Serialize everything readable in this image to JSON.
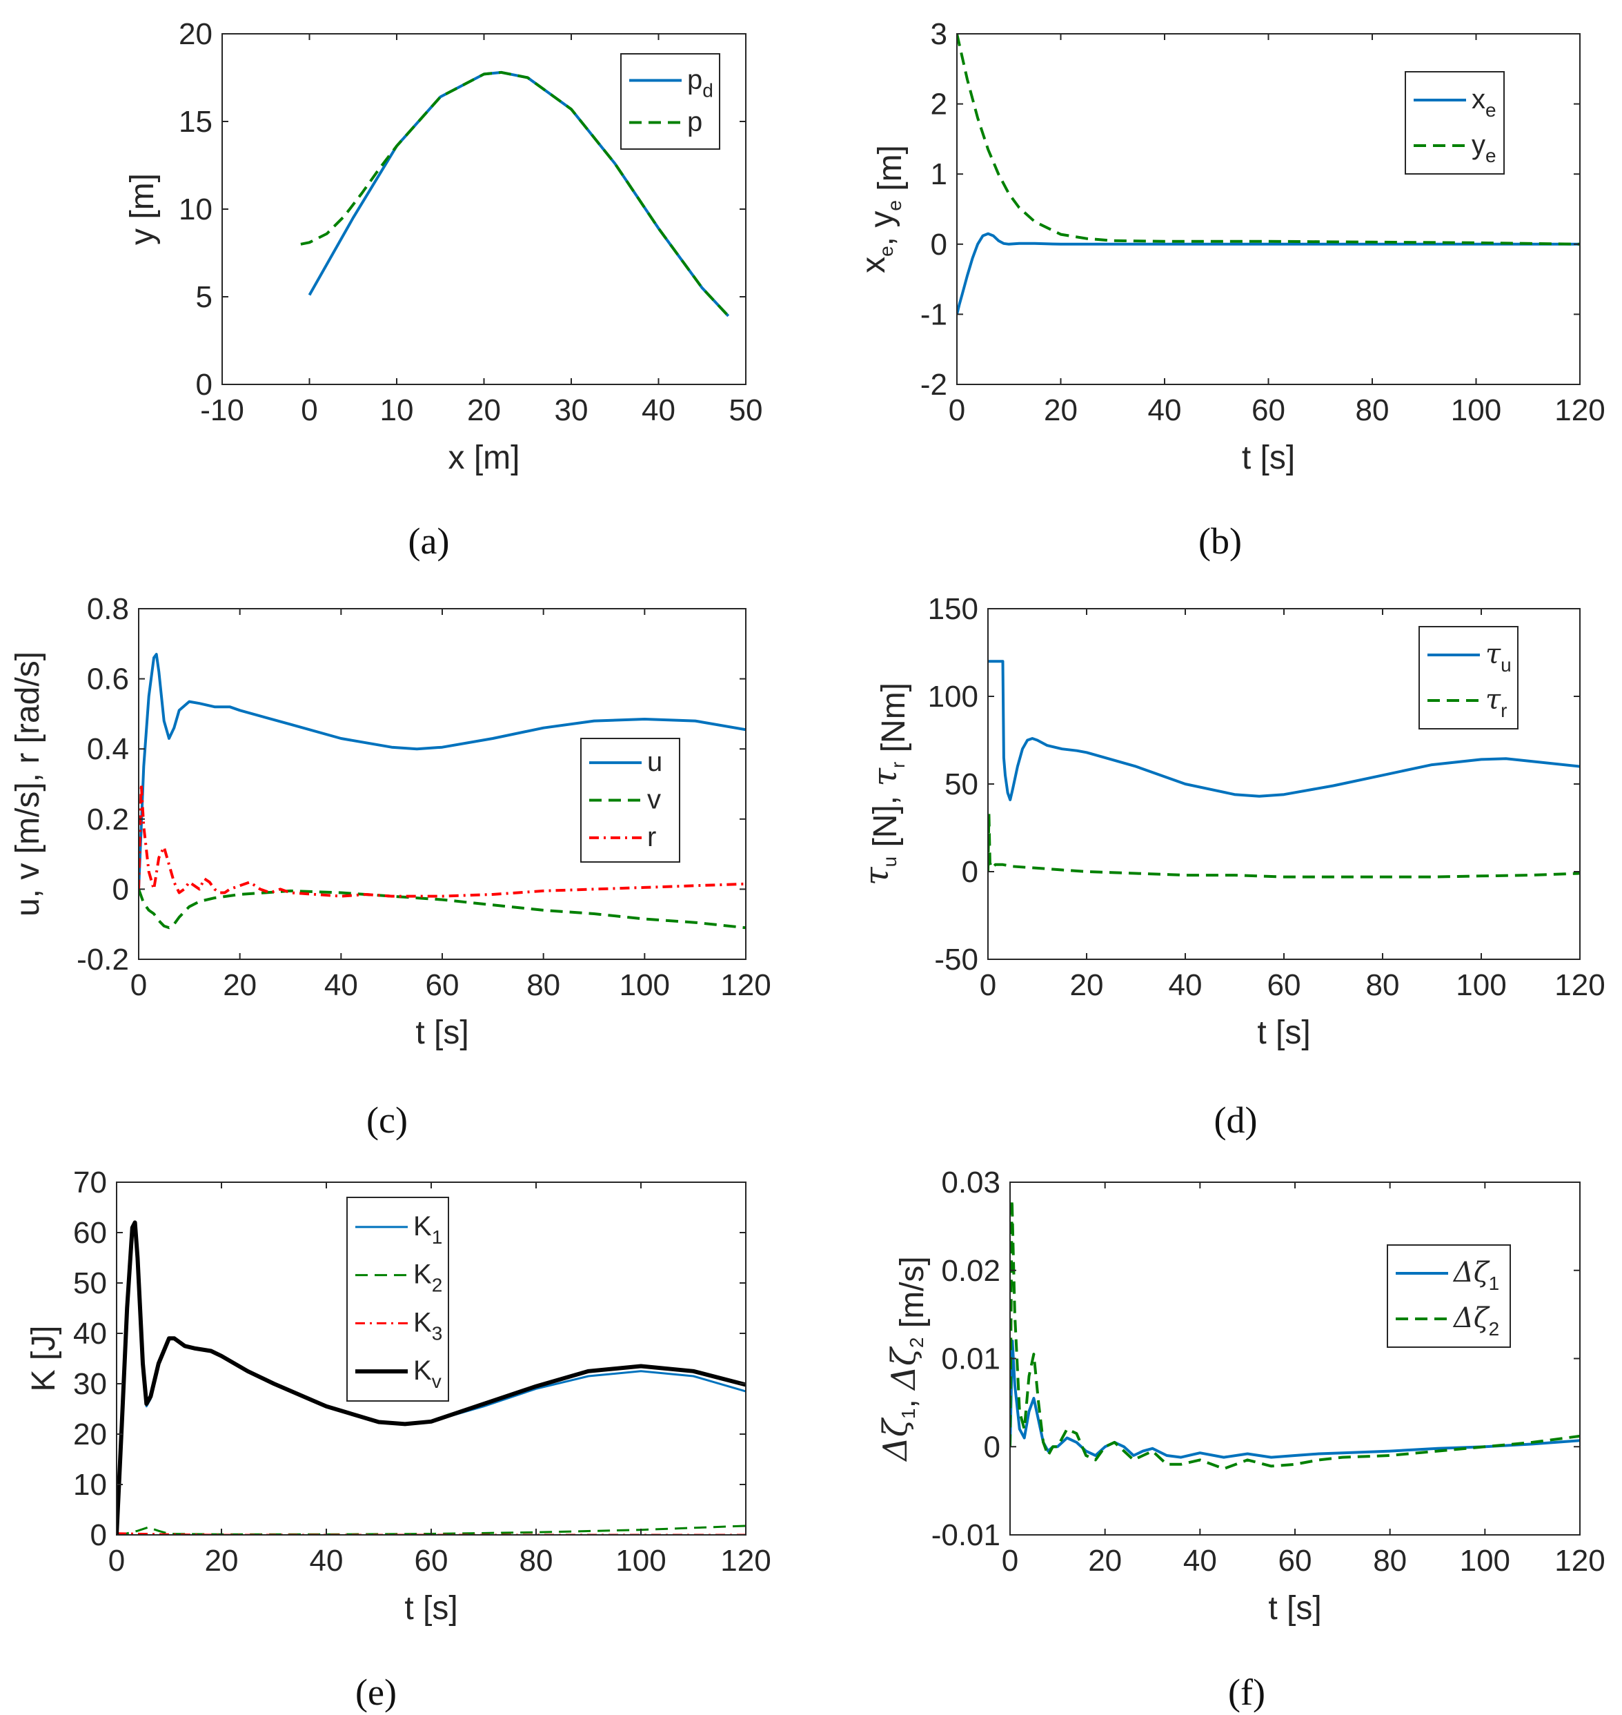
{
  "colors": {
    "blue": "#0072BD",
    "green": "#008000",
    "red": "#FF0000",
    "black": "#000000"
  },
  "chart_data": [
    {
      "type": "line",
      "caption": "(a)",
      "xlabel": "x [m]",
      "ylabel": "y [m]",
      "xlim": [
        -10,
        50
      ],
      "ylim": [
        0,
        20
      ],
      "xticks": [
        -10,
        0,
        10,
        20,
        30,
        40,
        50
      ],
      "xtick_labels": [
        "-10",
        "0",
        "10",
        "20",
        "30",
        "40",
        "50"
      ],
      "yticks": [
        0,
        5,
        10,
        15,
        20
      ],
      "ytick_labels": [
        "0",
        "5",
        "10",
        "15",
        "20"
      ],
      "legend_pos": "top-right",
      "series": [
        {
          "name": "p_d",
          "label": "p",
          "sub": "d",
          "color": "blue",
          "style": "solid",
          "x": [
            0,
            5,
            10,
            15,
            20,
            22,
            25,
            30,
            35,
            40,
            45,
            48
          ],
          "y": [
            5.1,
            9.5,
            13.6,
            16.4,
            17.7,
            17.8,
            17.5,
            15.7,
            12.6,
            8.9,
            5.5,
            3.9
          ]
        },
        {
          "name": "p",
          "label": "p",
          "sub": "",
          "color": "green",
          "style": "dashed",
          "x": [
            -1,
            0,
            2,
            4,
            6,
            8,
            10,
            15,
            20,
            22,
            25,
            30,
            35,
            40,
            45,
            48
          ],
          "y": [
            8.0,
            8.1,
            8.6,
            9.6,
            10.9,
            12.3,
            13.6,
            16.4,
            17.7,
            17.8,
            17.5,
            15.7,
            12.6,
            8.9,
            5.5,
            3.9
          ]
        }
      ]
    },
    {
      "type": "line",
      "caption": "(b)",
      "xlabel": "t [s]",
      "ylabel": "x_e, y_e [m]",
      "xlim": [
        0,
        120
      ],
      "ylim": [
        -2,
        3
      ],
      "xticks": [
        0,
        20,
        40,
        60,
        80,
        100,
        120
      ],
      "xtick_labels": [
        "0",
        "20",
        "40",
        "60",
        "80",
        "100",
        "120"
      ],
      "yticks": [
        -2,
        -1,
        0,
        1,
        2,
        3
      ],
      "ytick_labels": [
        "-2",
        "-1",
        "0",
        "1",
        "2",
        "3"
      ],
      "legend_pos": "top-right",
      "series": [
        {
          "name": "x_e",
          "label": "x",
          "sub": "e",
          "color": "blue",
          "style": "solid",
          "x": [
            0,
            0.5,
            1,
            2,
            3,
            4,
            5,
            6,
            7,
            8,
            9,
            10,
            12,
            15,
            20,
            40,
            60,
            80,
            100,
            120
          ],
          "y": [
            -1.0,
            -0.85,
            -0.72,
            -0.45,
            -0.2,
            0.0,
            0.12,
            0.15,
            0.12,
            0.05,
            0.01,
            0.0,
            0.01,
            0.01,
            0.0,
            0.0,
            0.0,
            0.0,
            0.0,
            0.0
          ]
        },
        {
          "name": "y_e",
          "label": "y",
          "sub": "e",
          "color": "green",
          "style": "dashed",
          "x": [
            0,
            2,
            4,
            6,
            8,
            10,
            12,
            15,
            20,
            25,
            30,
            40,
            60,
            80,
            100,
            120
          ],
          "y": [
            3.0,
            2.35,
            1.8,
            1.35,
            1.0,
            0.72,
            0.52,
            0.32,
            0.14,
            0.08,
            0.05,
            0.04,
            0.04,
            0.03,
            0.02,
            0.0
          ]
        }
      ]
    },
    {
      "type": "line",
      "caption": "(c)",
      "xlabel": "t [s]",
      "ylabel": "u, v [m/s], r [rad/s]",
      "xlim": [
        0,
        120
      ],
      "ylim": [
        -0.2,
        0.8
      ],
      "xticks": [
        0,
        20,
        40,
        60,
        80,
        100,
        120
      ],
      "xtick_labels": [
        "0",
        "20",
        "40",
        "60",
        "80",
        "100",
        "120"
      ],
      "yticks": [
        -0.2,
        0,
        0.2,
        0.4,
        0.6,
        0.8
      ],
      "ytick_labels": [
        "-0.2",
        "0",
        "0.2",
        "0.4",
        "0.6",
        "0.8"
      ],
      "legend_pos": "center-right",
      "series": [
        {
          "name": "u",
          "label": "u",
          "sub": "",
          "color": "blue",
          "style": "solid",
          "x": [
            0,
            1,
            2,
            3,
            3.5,
            4,
            5,
            6,
            7,
            8,
            10,
            12,
            15,
            18,
            20,
            30,
            40,
            50,
            55,
            60,
            70,
            80,
            90,
            100,
            110,
            120
          ],
          "y": [
            0.0,
            0.35,
            0.55,
            0.66,
            0.67,
            0.62,
            0.48,
            0.43,
            0.46,
            0.51,
            0.535,
            0.53,
            0.52,
            0.52,
            0.51,
            0.47,
            0.43,
            0.405,
            0.4,
            0.405,
            0.43,
            0.46,
            0.48,
            0.485,
            0.48,
            0.455
          ]
        },
        {
          "name": "v",
          "label": "v",
          "sub": "",
          "color": "green",
          "style": "dashed",
          "x": [
            0,
            1,
            2,
            3,
            4,
            5,
            6,
            7,
            8,
            10,
            12,
            15,
            20,
            30,
            40,
            50,
            60,
            70,
            80,
            90,
            100,
            110,
            120
          ],
          "y": [
            0.0,
            -0.04,
            -0.06,
            -0.07,
            -0.09,
            -0.105,
            -0.11,
            -0.1,
            -0.08,
            -0.05,
            -0.035,
            -0.025,
            -0.015,
            -0.005,
            -0.01,
            -0.02,
            -0.03,
            -0.045,
            -0.06,
            -0.07,
            -0.085,
            -0.095,
            -0.11
          ]
        },
        {
          "name": "r",
          "label": "r",
          "sub": "",
          "color": "red",
          "style": "dashdot",
          "x": [
            0,
            0.5,
            1,
            2,
            3,
            4,
            5,
            6,
            7,
            8,
            9,
            10,
            11,
            12,
            13,
            14,
            15,
            16,
            17,
            18,
            20,
            22,
            24,
            26,
            28,
            30,
            35,
            40,
            45,
            50,
            60,
            70,
            80,
            90,
            100,
            110,
            120
          ],
          "y": [
            0.0,
            0.3,
            0.18,
            0.05,
            0.0,
            0.09,
            0.12,
            0.07,
            0.02,
            -0.01,
            0.0,
            0.02,
            0.01,
            0.0,
            0.03,
            0.02,
            0.0,
            -0.01,
            -0.01,
            0.0,
            0.01,
            0.02,
            0.0,
            -0.01,
            0.0,
            -0.01,
            -0.015,
            -0.02,
            -0.015,
            -0.02,
            -0.02,
            -0.015,
            -0.005,
            0.0,
            0.005,
            0.01,
            0.015
          ]
        }
      ]
    },
    {
      "type": "line",
      "caption": "(d)",
      "xlabel": "t [s]",
      "ylabel": "τ_u [N], τ_r [Nm]",
      "xlim": [
        0,
        120
      ],
      "ylim": [
        -50,
        150
      ],
      "xticks": [
        0,
        20,
        40,
        60,
        80,
        100,
        120
      ],
      "xtick_labels": [
        "0",
        "20",
        "40",
        "60",
        "80",
        "100",
        "120"
      ],
      "yticks": [
        -50,
        0,
        50,
        100,
        150
      ],
      "ytick_labels": [
        "-50",
        "0",
        "50",
        "100",
        "150"
      ],
      "legend_pos": "top-right",
      "series": [
        {
          "name": "τ_u",
          "label": "τ",
          "sub": "u",
          "color": "blue",
          "style": "solid",
          "x": [
            0,
            3,
            3.2,
            3.5,
            4,
            4.5,
            5,
            6,
            7,
            8,
            9,
            10,
            12,
            15,
            18,
            20,
            30,
            40,
            50,
            55,
            60,
            70,
            80,
            90,
            100,
            105,
            110,
            120
          ],
          "y": [
            120,
            120,
            65,
            55,
            45,
            41,
            47,
            60,
            70,
            75,
            76,
            75,
            72,
            70,
            69,
            68,
            60,
            50,
            44,
            43,
            44,
            49,
            55,
            61,
            64,
            64.5,
            63,
            60
          ]
        },
        {
          "name": "τ_r",
          "label": "τ",
          "sub": "r",
          "color": "green",
          "style": "dashed",
          "x": [
            0,
            0.2,
            0.4,
            0.8,
            1.5,
            3,
            5,
            10,
            15,
            20,
            30,
            40,
            50,
            60,
            70,
            80,
            90,
            100,
            110,
            120
          ],
          "y": [
            0,
            33,
            5,
            2,
            4,
            4,
            3,
            2,
            1,
            0,
            -1,
            -2,
            -2,
            -3,
            -3,
            -3,
            -3,
            -2.5,
            -2,
            -1
          ]
        }
      ]
    },
    {
      "type": "line",
      "caption": "(e)",
      "xlabel": "t [s]",
      "ylabel": "K [J]",
      "xlim": [
        0,
        120
      ],
      "ylim": [
        0,
        70
      ],
      "xticks": [
        0,
        20,
        40,
        60,
        80,
        100,
        120
      ],
      "xtick_labels": [
        "0",
        "20",
        "40",
        "60",
        "80",
        "100",
        "120"
      ],
      "yticks": [
        0,
        10,
        20,
        30,
        40,
        50,
        60,
        70
      ],
      "ytick_labels": [
        "0",
        "10",
        "20",
        "30",
        "40",
        "50",
        "60",
        "70"
      ],
      "legend_pos": "top-center",
      "series": [
        {
          "name": "K_1",
          "label": "K",
          "sub": "1",
          "color": "blue",
          "style": "solid",
          "width": 3,
          "x": [
            0,
            1,
            2,
            3,
            3.5,
            4,
            5,
            5.7,
            6.5,
            8,
            10,
            11,
            13,
            15,
            18,
            20,
            25,
            30,
            40,
            50,
            55,
            60,
            70,
            80,
            90,
            100,
            110,
            120
          ],
          "y": [
            0,
            22,
            45,
            61,
            62,
            55,
            34,
            25.5,
            27,
            34,
            39,
            39,
            37.5,
            37,
            36.5,
            35.5,
            32.5,
            30,
            25.5,
            22.3,
            22,
            22.5,
            25.5,
            29,
            31.5,
            32.5,
            31.5,
            28.5
          ]
        },
        {
          "name": "K_2",
          "label": "K",
          "sub": "2",
          "color": "green",
          "style": "dashed",
          "width": 3,
          "x": [
            0,
            2,
            4,
            6,
            8,
            10,
            20,
            40,
            60,
            80,
            100,
            120
          ],
          "y": [
            0,
            0.3,
            0.8,
            1.5,
            0.8,
            0.2,
            0.1,
            0.1,
            0.2,
            0.5,
            1.0,
            1.8
          ]
        },
        {
          "name": "K_3",
          "label": "K",
          "sub": "3",
          "color": "red",
          "style": "dashdot",
          "width": 3,
          "x": [
            0,
            5,
            10,
            20,
            40,
            60,
            80,
            100,
            120
          ],
          "y": [
            0.3,
            0.2,
            0.1,
            0.0,
            0.0,
            0.0,
            0.0,
            0.0,
            0.0
          ]
        },
        {
          "name": "K_v",
          "label": "K",
          "sub": "v",
          "color": "black",
          "style": "solid",
          "width": 6,
          "x": [
            0,
            1,
            2,
            3,
            3.5,
            4,
            5,
            5.7,
            6.5,
            8,
            10,
            11,
            13,
            15,
            18,
            20,
            25,
            30,
            40,
            50,
            55,
            60,
            70,
            80,
            90,
            100,
            110,
            120
          ],
          "y": [
            0,
            22,
            45,
            61,
            62,
            55,
            34,
            26,
            27.5,
            34,
            39,
            39,
            37.5,
            37,
            36.5,
            35.5,
            32.5,
            30,
            25.5,
            22.4,
            22,
            22.5,
            26,
            29.5,
            32.5,
            33.5,
            32.5,
            29.8
          ]
        }
      ]
    },
    {
      "type": "line",
      "caption": "(f)",
      "xlabel": "t [s]",
      "ylabel": "Δζ_1, Δζ_2 [m/s]",
      "xlim": [
        0,
        120
      ],
      "ylim": [
        -0.01,
        0.03
      ],
      "xticks": [
        0,
        20,
        40,
        60,
        80,
        100,
        120
      ],
      "xtick_labels": [
        "0",
        "20",
        "40",
        "60",
        "80",
        "100",
        "120"
      ],
      "yticks": [
        -0.01,
        0,
        0.01,
        0.02,
        0.03
      ],
      "ytick_labels": [
        "-0.01",
        "0",
        "0.01",
        "0.02",
        "0.03"
      ],
      "legend_pos": "center-right",
      "series": [
        {
          "name": "Δζ_1",
          "label": "Δζ",
          "sub": "1",
          "color": "blue",
          "style": "solid",
          "x": [
            0,
            0.5,
            1,
            2,
            3,
            4,
            5,
            6,
            7,
            8,
            9,
            10,
            12,
            14,
            16,
            18,
            20,
            22,
            24,
            26,
            28,
            30,
            33,
            36,
            40,
            45,
            50,
            55,
            60,
            65,
            70,
            80,
            90,
            100,
            110,
            120
          ],
          "y": [
            0.0,
            0.012,
            0.007,
            0.002,
            0.001,
            0.004,
            0.0055,
            0.003,
            0.0005,
            -0.0005,
            0.0,
            0.0,
            0.001,
            0.0005,
            -0.0005,
            -0.001,
            0.0,
            0.0005,
            0.0,
            -0.001,
            -0.0005,
            -0.0002,
            -0.001,
            -0.0012,
            -0.0007,
            -0.0012,
            -0.0008,
            -0.0012,
            -0.001,
            -0.0008,
            -0.0007,
            -0.0005,
            -0.0002,
            0.0,
            0.0003,
            0.0007
          ]
        },
        {
          "name": "Δζ_2",
          "label": "Δζ",
          "sub": "2",
          "color": "green",
          "style": "dashed",
          "x": [
            0,
            0.4,
            1,
            2,
            3,
            4,
            5,
            6,
            7,
            8,
            9,
            10,
            12,
            14,
            16,
            18,
            20,
            22,
            24,
            26,
            28,
            30,
            33,
            36,
            40,
            45,
            50,
            55,
            60,
            65,
            70,
            80,
            90,
            100,
            110,
            120
          ],
          "y": [
            0.0,
            0.028,
            0.015,
            0.004,
            0.002,
            0.008,
            0.0105,
            0.005,
            0.0005,
            -0.001,
            0.0,
            0.0,
            0.002,
            0.0015,
            -0.001,
            -0.0015,
            0.0,
            0.0005,
            -0.0005,
            -0.0015,
            -0.001,
            -0.0005,
            -0.002,
            -0.002,
            -0.0015,
            -0.0025,
            -0.0015,
            -0.0022,
            -0.002,
            -0.0015,
            -0.0012,
            -0.001,
            -0.0005,
            0.0,
            0.0005,
            0.0012
          ]
        }
      ]
    }
  ]
}
